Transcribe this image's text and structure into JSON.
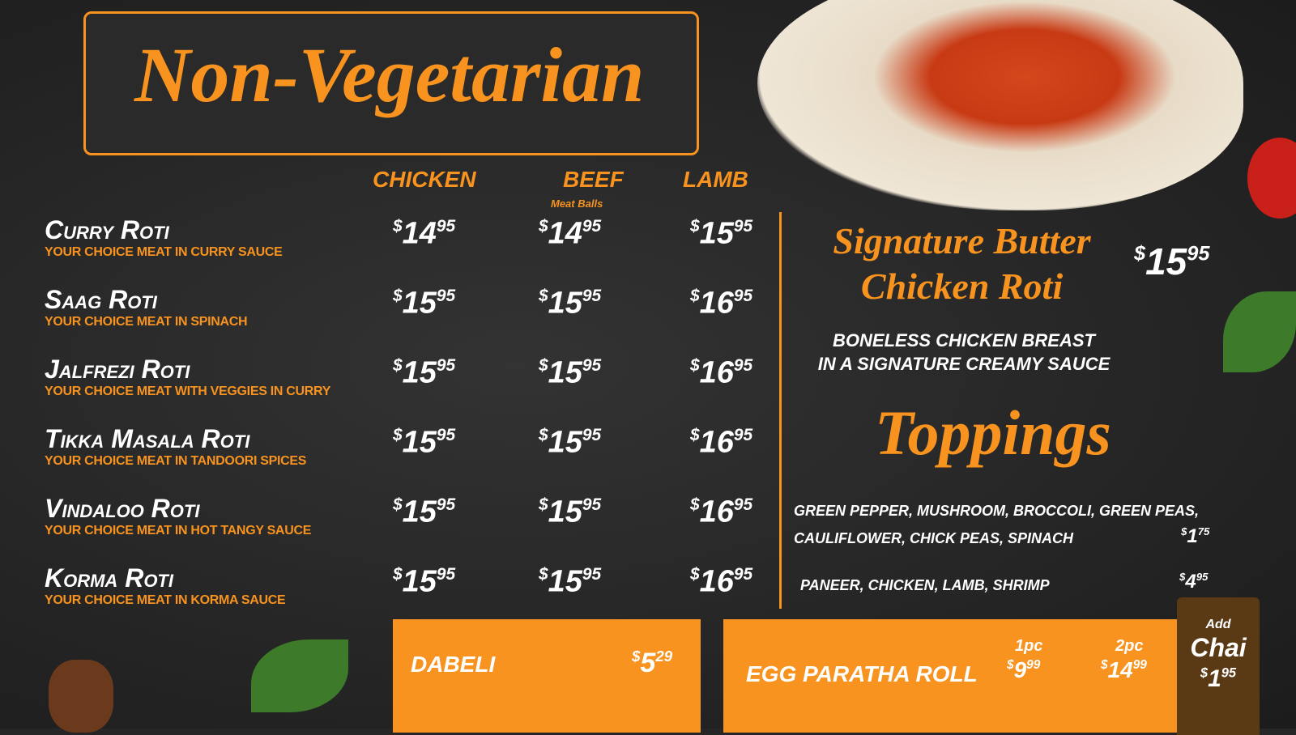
{
  "currency": "$",
  "title": "Non-Vegetarian",
  "columns": [
    {
      "label": "Chicken"
    },
    {
      "label": "Beef",
      "sub": "Meat Balls"
    },
    {
      "label": "Lamb"
    }
  ],
  "items": [
    {
      "name": "Curry Roti",
      "desc": "Your choice meat in curry sauce",
      "prices": [
        {
          "d": "14",
          "c": "95"
        },
        {
          "d": "14",
          "c": "95"
        },
        {
          "d": "15",
          "c": "95"
        }
      ]
    },
    {
      "name": "Saag Roti",
      "desc": "Your choice meat in spinach",
      "prices": [
        {
          "d": "15",
          "c": "95"
        },
        {
          "d": "15",
          "c": "95"
        },
        {
          "d": "16",
          "c": "95"
        }
      ]
    },
    {
      "name": "Jalfrezi Roti",
      "desc": "Your choice meat with veggies in curry",
      "prices": [
        {
          "d": "15",
          "c": "95"
        },
        {
          "d": "15",
          "c": "95"
        },
        {
          "d": "16",
          "c": "95"
        }
      ]
    },
    {
      "name": "Tikka Masala Roti",
      "desc": "Your choice meat in tandoori spices",
      "prices": [
        {
          "d": "15",
          "c": "95"
        },
        {
          "d": "15",
          "c": "95"
        },
        {
          "d": "16",
          "c": "95"
        }
      ]
    },
    {
      "name": "Vindaloo Roti",
      "desc": "Your choice meat in hot tangy sauce",
      "prices": [
        {
          "d": "15",
          "c": "95"
        },
        {
          "d": "15",
          "c": "95"
        },
        {
          "d": "16",
          "c": "95"
        }
      ]
    },
    {
      "name": "Korma Roti",
      "desc": "Your choice meat in korma sauce",
      "prices": [
        {
          "d": "15",
          "c": "95"
        },
        {
          "d": "15",
          "c": "95"
        },
        {
          "d": "16",
          "c": "95"
        }
      ]
    }
  ],
  "signature": {
    "name_line1": "Signature Butter",
    "name_line2": "Chicken Roti",
    "price": {
      "d": "15",
      "c": "95"
    },
    "desc_line1": "Boneless chicken breast",
    "desc_line2": "in a signature creamy sauce"
  },
  "toppings": {
    "title": "Toppings",
    "veg_line1": "Green pepper, mushroom, broccoli, green peas,",
    "veg_line2": "Cauliflower, chick peas, spinach",
    "veg_price": {
      "d": "1",
      "c": "75"
    },
    "meat_line": "Paneer, chicken, lamb, shrimp",
    "meat_price": {
      "d": "4",
      "c": "95"
    }
  },
  "dabeli": {
    "label": "Dabeli",
    "price": {
      "d": "5",
      "c": "29"
    }
  },
  "egg_roll": {
    "label": "Egg Paratha Roll",
    "opt1": "1pc",
    "price1": {
      "d": "9",
      "c": "99"
    },
    "opt2": "2pc",
    "price2": {
      "d": "14",
      "c": "99"
    }
  },
  "chai": {
    "add": "Add",
    "label": "Chai",
    "price": {
      "d": "1",
      "c": "95"
    }
  },
  "colors": {
    "accent": "#f7931e",
    "background": "#262626",
    "chai_box": "#5a3a14"
  }
}
